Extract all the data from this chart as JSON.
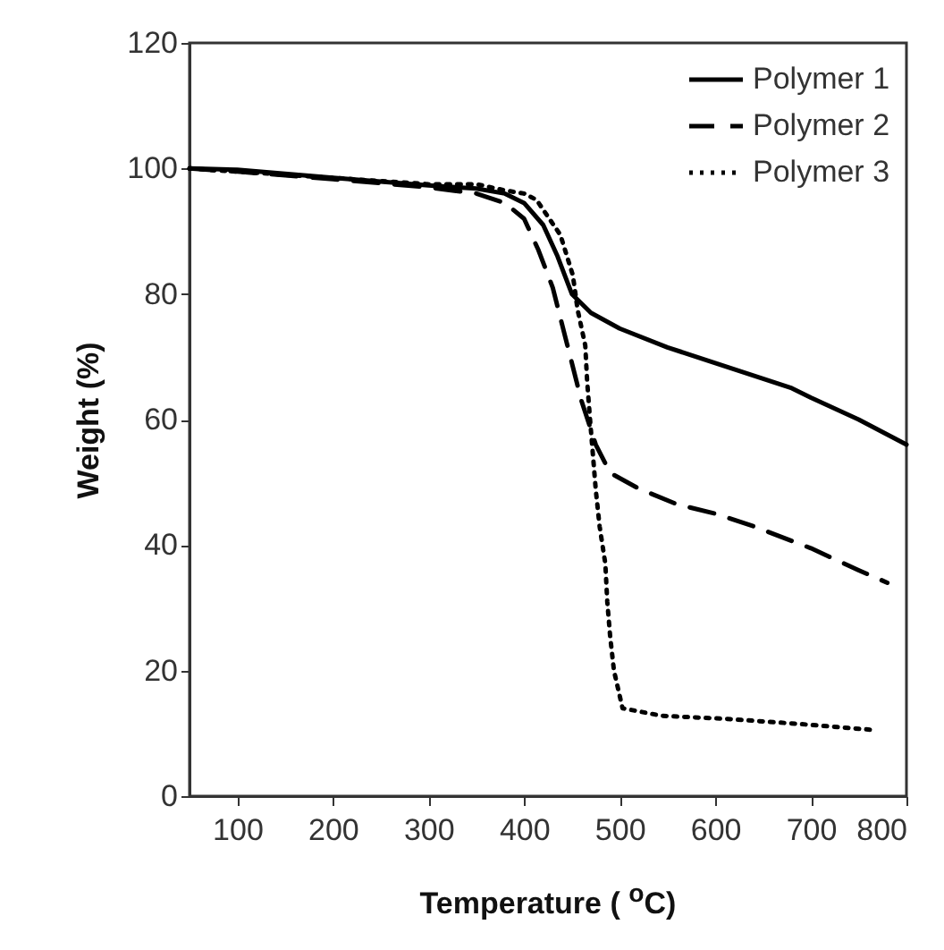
{
  "chart_data": {
    "type": "line",
    "xlabel": "Temperature ( $^{o}$C)",
    "ylabel": "Weight (%)",
    "xlim": [
      50,
      800
    ],
    "xticks": [
      100,
      200,
      300,
      400,
      500,
      600,
      700,
      800
    ],
    "ylim": [
      0,
      120
    ],
    "yticks": [
      0,
      20,
      40,
      60,
      80,
      100,
      120
    ],
    "grid": false,
    "legend": "top right",
    "marker": "none",
    "series": [
      {
        "name": "Polymer  1",
        "color": "#000000",
        "line_style": "solid",
        "x": [
          50,
          100,
          200,
          300,
          350,
          380,
          400,
          420,
          435,
          450,
          470,
          500,
          550,
          600,
          650,
          680,
          700,
          750,
          800
        ],
        "values": [
          100,
          99.8,
          98.5,
          97.3,
          96.8,
          96,
          94.5,
          91,
          86,
          80,
          77,
          74.5,
          71.5,
          69,
          66.5,
          65,
          63.5,
          60,
          56
        ]
      },
      {
        "name": "Polymer  2",
        "color": "#000000",
        "line_style": "dashed",
        "x": [
          50,
          100,
          200,
          300,
          350,
          380,
          400,
          415,
          430,
          445,
          460,
          475,
          490,
          520,
          560,
          600,
          640,
          700,
          750,
          780
        ],
        "values": [
          100,
          99.5,
          98.3,
          97,
          96,
          94.5,
          92,
          87,
          81,
          72,
          63,
          56,
          51.5,
          49,
          46.5,
          45,
          43,
          39.5,
          36,
          34
        ]
      },
      {
        "name": "Polymer  3",
        "color": "#000000",
        "line_style": "dotted",
        "x": [
          50,
          200,
          300,
          350,
          380,
          400,
          413,
          438,
          451,
          456,
          464,
          466,
          469,
          475,
          479,
          485,
          487,
          490,
          494,
          503,
          544,
          613,
          688,
          769
        ],
        "values": [
          100,
          98.5,
          97.5,
          97.5,
          96.5,
          96,
          95,
          89.4,
          83,
          77.5,
          71.8,
          66,
          60,
          48.8,
          43,
          37,
          31,
          25.5,
          20,
          14,
          12.8,
          12.3,
          11.5,
          10.5
        ]
      }
    ]
  }
}
